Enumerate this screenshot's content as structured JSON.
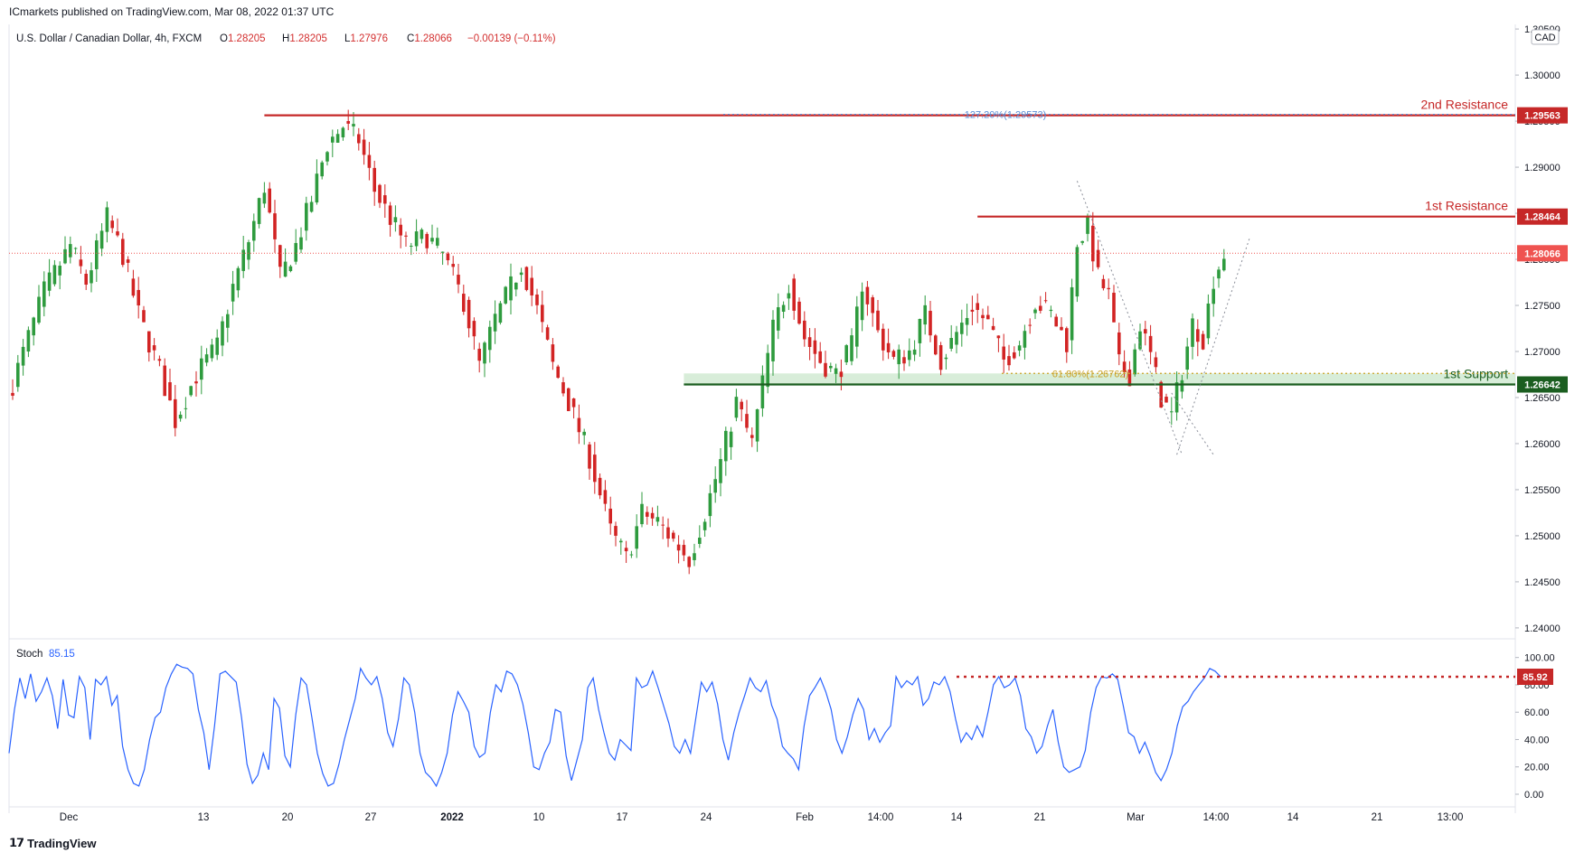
{
  "publisher_line": "ICmarkets published on TradingView.com, Mar 08, 2022 01:37 UTC",
  "branding": "TradingView",
  "symbol": {
    "name": "U.S. Dollar / Canadian Dollar, 4h, FXCM",
    "ohlc": [
      {
        "k": "O",
        "v": "1.28205"
      },
      {
        "k": "H",
        "v": "1.28205"
      },
      {
        "k": "L",
        "v": "1.27976"
      },
      {
        "k": "C",
        "v": "1.28066"
      }
    ],
    "change": "−0.00139 (−0.11%)"
  },
  "currency_label": "CAD",
  "colors": {
    "up": "#26a69a",
    "down": "#ef5350",
    "up_candle": "#2e9b3e",
    "down_candle": "#d22424",
    "resistance": "#c62828",
    "support": "#1b5e20",
    "stoch": "#2962ff",
    "fib_blue": "#5b8dd6",
    "fib_gold": "#c9a227"
  },
  "chart_data": [
    {
      "type": "candlestick",
      "title": "U.S. Dollar / Canadian Dollar, 4h, FXCM",
      "ylim": [
        1.24,
        1.305
      ],
      "y_ticks": [
        "1.24000",
        "1.24500",
        "1.25000",
        "1.25500",
        "1.26000",
        "1.26500",
        "1.27000",
        "1.27500",
        "1.28000",
        "1.28500",
        "1.29000",
        "1.29500",
        "1.30000",
        "1.30500"
      ],
      "x_ticks": [
        "Dec",
        "13",
        "20",
        "27",
        "2022",
        "10",
        "17",
        "24",
        "Feb",
        "14:00",
        "14",
        "21",
        "Mar",
        "14:00",
        "14",
        "21",
        "13:00"
      ],
      "price_path": [
        [
          0,
          1.2665
        ],
        [
          6,
          1.2765
        ],
        [
          11,
          1.2815
        ],
        [
          14,
          1.2775
        ],
        [
          18,
          1.2845
        ],
        [
          21,
          1.2805
        ],
        [
          24,
          1.274
        ],
        [
          28,
          1.268
        ],
        [
          31,
          1.2625
        ],
        [
          35,
          1.2675
        ],
        [
          39,
          1.2705
        ],
        [
          42,
          1.277
        ],
        [
          45,
          1.282
        ],
        [
          48,
          1.288
        ],
        [
          51,
          1.278
        ],
        [
          54,
          1.2815
        ],
        [
          57,
          1.2865
        ],
        [
          60,
          1.2925
        ],
        [
          63,
          1.2945
        ],
        [
          66,
          1.293
        ],
        [
          69,
          1.2875
        ],
        [
          72,
          1.2845
        ],
        [
          75,
          1.2815
        ],
        [
          79,
          1.2825
        ],
        [
          82,
          1.2805
        ],
        [
          86,
          1.2755
        ],
        [
          89,
          1.2685
        ],
        [
          92,
          1.2735
        ],
        [
          95,
          1.277
        ],
        [
          97,
          1.2795
        ],
        [
          100,
          1.2745
        ],
        [
          103,
          1.2685
        ],
        [
          106,
          1.2645
        ],
        [
          110,
          1.2585
        ],
        [
          114,
          1.2505
        ],
        [
          117,
          1.2475
        ],
        [
          120,
          1.2525
        ],
        [
          123,
          1.2515
        ],
        [
          126,
          1.2495
        ],
        [
          129,
          1.2475
        ],
        [
          132,
          1.2525
        ],
        [
          135,
          1.258
        ],
        [
          138,
          1.2645
        ],
        [
          141,
          1.26
        ],
        [
          143,
          1.2665
        ],
        [
          145,
          1.2725
        ],
        [
          148,
          1.2775
        ],
        [
          151,
          1.2715
        ],
        [
          154,
          1.269
        ],
        [
          157,
          1.2675
        ],
        [
          160,
          1.2705
        ],
        [
          162,
          1.2775
        ],
        [
          165,
          1.272
        ],
        [
          168,
          1.269
        ],
        [
          171,
          1.27
        ],
        [
          174,
          1.274
        ],
        [
          177,
          1.269
        ],
        [
          180,
          1.272
        ],
        [
          183,
          1.275
        ],
        [
          186,
          1.273
        ],
        [
          189,
          1.269
        ],
        [
          192,
          1.271
        ],
        [
          195,
          1.2755
        ],
        [
          198,
          1.274
        ],
        [
          201,
          1.271
        ],
        [
          203,
          1.282
        ],
        [
          205,
          1.2835
        ],
        [
          207,
          1.278
        ],
        [
          209,
          1.276
        ],
        [
          211,
          1.2685
        ],
        [
          213,
          1.2675
        ],
        [
          215,
          1.273
        ],
        [
          217,
          1.2695
        ],
        [
          219,
          1.265
        ],
        [
          221,
          1.263
        ],
        [
          223,
          1.268
        ],
        [
          225,
          1.273
        ],
        [
          227,
          1.2715
        ],
        [
          229,
          1.278
        ],
        [
          231,
          1.2806
        ]
      ],
      "last_price": "1.28066",
      "levels": [
        {
          "name": "2nd Resistance",
          "value": 1.29563,
          "label": "1.29563"
        },
        {
          "name": "1st Resistance",
          "value": 1.28464,
          "label": "1.28464"
        },
        {
          "name": "1st Support",
          "value": 1.26642,
          "label": "1.26642"
        }
      ],
      "fib_labels": [
        {
          "text": "127.20%(1.29573)",
          "value": 1.29573
        },
        {
          "text": "61.80%(1.26762)",
          "value": 1.26762
        }
      ]
    },
    {
      "type": "line",
      "title": "Stoch",
      "value_label": "85.15",
      "ylim": [
        0,
        100
      ],
      "y_ticks": [
        "0.00",
        "20.00",
        "40.00",
        "60.00",
        "80.00",
        "100.00"
      ],
      "level": {
        "value": 85.92,
        "label": "85.92"
      },
      "values": [
        30,
        62,
        85,
        70,
        88,
        68,
        75,
        85,
        72,
        48,
        84,
        58,
        56,
        86,
        78,
        40,
        84,
        80,
        86,
        65,
        72,
        35,
        18,
        8,
        6,
        18,
        40,
        56,
        60,
        78,
        88,
        95,
        93,
        92,
        88,
        62,
        45,
        18,
        50,
        88,
        90,
        86,
        82,
        56,
        22,
        8,
        14,
        30,
        18,
        70,
        63,
        28,
        20,
        58,
        85,
        80,
        56,
        30,
        15,
        6,
        8,
        22,
        40,
        55,
        70,
        92,
        85,
        80,
        86,
        70,
        45,
        35,
        55,
        85,
        80,
        60,
        30,
        16,
        12,
        6,
        16,
        30,
        58,
        75,
        68,
        60,
        35,
        27,
        30,
        60,
        80,
        75,
        90,
        88,
        80,
        66,
        45,
        20,
        18,
        30,
        38,
        62,
        60,
        28,
        10,
        25,
        40,
        78,
        85,
        62,
        45,
        30,
        25,
        40,
        36,
        32,
        85,
        78,
        80,
        90,
        78,
        65,
        52,
        35,
        30,
        40,
        30,
        56,
        82,
        75,
        82,
        66,
        40,
        25,
        45,
        60,
        72,
        85,
        78,
        75,
        83,
        65,
        55,
        35,
        30,
        26,
        18,
        50,
        72,
        78,
        85,
        75,
        62,
        40,
        30,
        42,
        58,
        70,
        62,
        40,
        48,
        38,
        45,
        50,
        86,
        78,
        83,
        80,
        86,
        65,
        70,
        82,
        80,
        86,
        75,
        55,
        38,
        45,
        40,
        50,
        42,
        60,
        80,
        86,
        78,
        80,
        85,
        72,
        48,
        42,
        30,
        35,
        50,
        62,
        38,
        20,
        16,
        18,
        20,
        32,
        60,
        78,
        86,
        85,
        88,
        84,
        65,
        45,
        42,
        30,
        38,
        28,
        16,
        10,
        18,
        30,
        50,
        64,
        68,
        75,
        80,
        85,
        92,
        90,
        86
      ]
    }
  ]
}
